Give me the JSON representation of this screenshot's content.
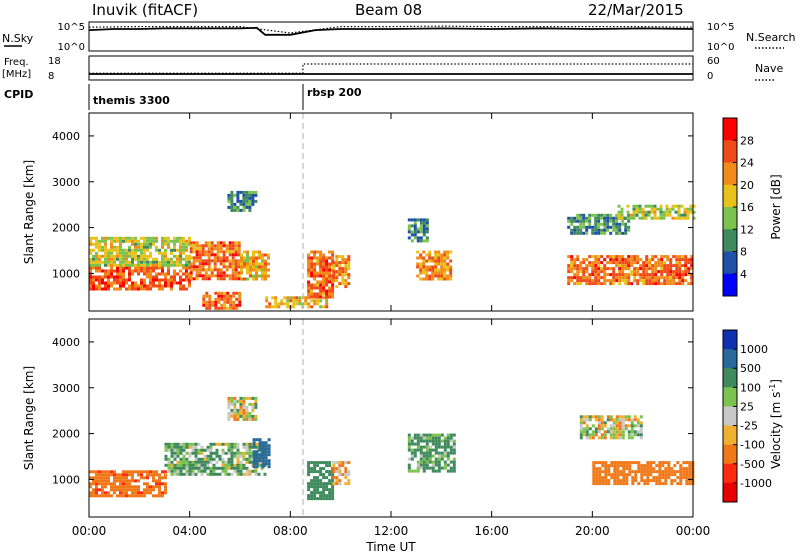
{
  "header": {
    "station": "Inuvik (fitACF)",
    "beam": "Beam 08",
    "date": "22/Mar/2015"
  },
  "nsky_panel": {
    "left_label": "N.Sky",
    "left_ticks": [
      "10^5",
      "10^0"
    ],
    "right_label": "N.Search",
    "right_ticks": [
      "10^5",
      "10^0"
    ]
  },
  "freq_panel": {
    "left_label_line1": "Freq.",
    "left_label_line2": "[MHz]",
    "left_ticks": [
      "18",
      "8"
    ],
    "right_label": "Nave",
    "right_ticks": [
      "60",
      "0"
    ]
  },
  "cpid_panel": {
    "label": "CPID",
    "programs": [
      {
        "name": "themis 3300",
        "start": "00:00"
      },
      {
        "name": "rbsp 200",
        "start": "08:30"
      }
    ]
  },
  "power_panel": {
    "ylabel": "Slant Range [km]",
    "yticks": [
      "4000",
      "3000",
      "2000",
      "1000"
    ],
    "colorbar_label": "Power [dB]",
    "colorbar_ticks": [
      "28",
      "24",
      "20",
      "16",
      "12",
      "8",
      "4"
    ],
    "colors": [
      "#0000ff",
      "#1f4fa6",
      "#3d8a5e",
      "#7cc24f",
      "#e8c21a",
      "#f08a18",
      "#f04a18",
      "#ff0000"
    ]
  },
  "velocity_panel": {
    "ylabel": "Slant Range [km]",
    "yticks": [
      "4000",
      "3000",
      "2000",
      "1000"
    ],
    "colorbar_label": "Velocity [m s",
    "colorbar_label_exp": "-1",
    "colorbar_label_end": "]",
    "colorbar_ticks": [
      "1000",
      "500",
      "100",
      "25",
      "-25",
      "-100",
      "-500",
      "-1000"
    ],
    "colors": [
      "#1030b0",
      "#2a6a9a",
      "#3f8a5c",
      "#7cc24f",
      "#c8c8c8",
      "#f0b030",
      "#f07818",
      "#ff2a10",
      "#e80000"
    ]
  },
  "xaxis": {
    "ticks": [
      "00:00",
      "04:00",
      "08:00",
      "12:00",
      "16:00",
      "20:00",
      "00:00"
    ],
    "label": "Time UT"
  },
  "chart_data": [
    {
      "type": "line",
      "series": [
        {
          "name": "N.Sky",
          "style": "solid",
          "x": [
            "00:00",
            "01:00",
            "02:00",
            "03:00",
            "04:00",
            "05:00",
            "06:00",
            "06:40",
            "07:00",
            "08:00",
            "09:00",
            "10:00",
            "12:00",
            "14:00",
            "16:00",
            "18:00",
            "20:00",
            "22:00",
            "24:00"
          ],
          "values": [
            3.6,
            3.8,
            3.8,
            3.9,
            3.9,
            3.9,
            3.9,
            4.0,
            2.8,
            2.8,
            3.6,
            3.8,
            3.8,
            3.9,
            3.8,
            3.9,
            3.8,
            3.9,
            3.8
          ]
        },
        {
          "name": "N.Search",
          "style": "dotted",
          "x": [
            "00:00",
            "02:00",
            "04:00",
            "06:00",
            "08:00",
            "10:00",
            "12:00",
            "14:00",
            "16:00",
            "18:00",
            "20:00",
            "22:00",
            "24:00"
          ],
          "values": [
            4.1,
            4.2,
            4.2,
            4.2,
            3.1,
            4.2,
            4.2,
            4.3,
            4.2,
            4.2,
            4.2,
            4.2,
            4.1
          ]
        }
      ],
      "ylim": [
        0,
        5
      ]
    },
    {
      "type": "line",
      "series": [
        {
          "name": "Freq.",
          "style": "solid",
          "x": [
            "00:00",
            "08:30",
            "24:00"
          ],
          "values": [
            10.5,
            10.5,
            10.5
          ]
        },
        {
          "name": "Nave",
          "style": "dotted",
          "x": [
            "00:00",
            "08:30",
            "08:30",
            "24:00"
          ],
          "values": [
            17,
            17,
            40,
            40
          ]
        }
      ]
    },
    {
      "type": "heatmap",
      "name": "Power",
      "units": "dB",
      "ylim": [
        180,
        4500
      ],
      "xlim": [
        "00:00",
        "24:00"
      ],
      "regions": [
        {
          "t": [
            "00:00",
            "04:00"
          ],
          "range": [
            650,
            1150
          ],
          "value": 27
        },
        {
          "t": [
            "00:00",
            "04:00"
          ],
          "range": [
            1150,
            1800
          ],
          "value": 18
        },
        {
          "t": [
            "04:00",
            "06:00"
          ],
          "range": [
            900,
            1700
          ],
          "value": 26
        },
        {
          "t": [
            "06:00",
            "07:10"
          ],
          "range": [
            900,
            1500
          ],
          "value": 22
        },
        {
          "t": [
            "05:30",
            "06:40"
          ],
          "range": [
            2400,
            2800
          ],
          "value": 12
        },
        {
          "t": [
            "04:30",
            "06:00"
          ],
          "range": [
            250,
            600
          ],
          "value": 26
        },
        {
          "t": [
            "07:00",
            "09:30"
          ],
          "range": [
            250,
            500
          ],
          "value": 22
        },
        {
          "t": [
            "08:40",
            "09:40"
          ],
          "range": [
            500,
            1500
          ],
          "value": 26
        },
        {
          "t": [
            "09:40",
            "10:20"
          ],
          "range": [
            700,
            1400
          ],
          "value": 24
        },
        {
          "t": [
            "12:40",
            "13:30"
          ],
          "range": [
            1700,
            2200
          ],
          "value": 12
        },
        {
          "t": [
            "13:00",
            "14:20"
          ],
          "range": [
            900,
            1500
          ],
          "value": 24
        },
        {
          "t": [
            "19:00",
            "21:30"
          ],
          "range": [
            1900,
            2300
          ],
          "value": 12
        },
        {
          "t": [
            "21:00",
            "24:00"
          ],
          "range": [
            2200,
            2500
          ],
          "value": 18
        },
        {
          "t": [
            "19:00",
            "24:00"
          ],
          "range": [
            800,
            1400
          ],
          "value": 26
        }
      ]
    },
    {
      "type": "heatmap",
      "name": "Velocity",
      "units": "m s-1",
      "ylim": [
        180,
        4500
      ],
      "xlim": [
        "00:00",
        "24:00"
      ],
      "regions": [
        {
          "t": [
            "00:00",
            "03:00"
          ],
          "range": [
            650,
            1200
          ],
          "value": -400
        },
        {
          "t": [
            "03:00",
            "07:00"
          ],
          "range": [
            1100,
            1800
          ],
          "value": 100
        },
        {
          "t": [
            "06:30",
            "07:10"
          ],
          "range": [
            1300,
            1900
          ],
          "value": 800
        },
        {
          "t": [
            "05:30",
            "06:40"
          ],
          "range": [
            2300,
            2800
          ],
          "value": 0
        },
        {
          "t": [
            "08:40",
            "09:40"
          ],
          "range": [
            600,
            1400
          ],
          "value": 300
        },
        {
          "t": [
            "09:40",
            "10:20"
          ],
          "range": [
            900,
            1400
          ],
          "value": -100
        },
        {
          "t": [
            "12:40",
            "14:30"
          ],
          "range": [
            1200,
            2000
          ],
          "value": 150
        },
        {
          "t": [
            "19:30",
            "22:00"
          ],
          "range": [
            1900,
            2400
          ],
          "value": 0
        },
        {
          "t": [
            "20:00",
            "24:00"
          ],
          "range": [
            900,
            1400
          ],
          "value": -300
        }
      ]
    }
  ]
}
